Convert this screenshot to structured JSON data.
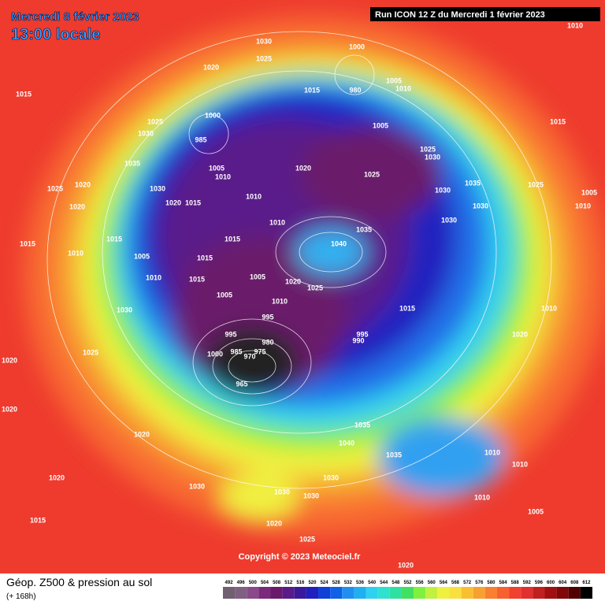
{
  "header": {
    "date": "Mercredi 8 février 2023",
    "time": "13:00 locale",
    "run": "Run ICON 12 Z du Mercredi 1 février 2023"
  },
  "copyright": "Copyright © 2023 Meteociel.fr",
  "legend": {
    "title": "Géop. Z500 & pression au sol",
    "subtitle": "(+ 168h)",
    "ticks": [
      492,
      496,
      500,
      504,
      508,
      512,
      516,
      520,
      524,
      528,
      532,
      536,
      540,
      544,
      548,
      552,
      556,
      560,
      564,
      568,
      572,
      576,
      580,
      584,
      588,
      592,
      596,
      600,
      604,
      608,
      612
    ],
    "colors": [
      "#706070",
      "#806080",
      "#8a4a8a",
      "#7a2a7a",
      "#6a1a6a",
      "#5a1a8a",
      "#3a1a9a",
      "#2020c0",
      "#1040d8",
      "#1060e8",
      "#2090f0",
      "#20b0f0",
      "#30d0f0",
      "#30e0d0",
      "#30e0a0",
      "#40e060",
      "#80f040",
      "#c0f040",
      "#f0f040",
      "#f8e040",
      "#f8c030",
      "#f8a030",
      "#f88030",
      "#f86030",
      "#f04030",
      "#e03030",
      "#c02020",
      "#a01010",
      "#800808",
      "#500000",
      "#000000"
    ]
  },
  "isobar_labels": [
    1030,
    1025,
    1020,
    1015,
    1030,
    1025,
    1000,
    1005,
    1010,
    980,
    1015,
    1000,
    985,
    1005,
    1010,
    1030,
    1020,
    1015,
    1035,
    1025,
    1020,
    1020,
    1015,
    1010,
    1005,
    1015,
    1010,
    1010,
    1015,
    1040,
    1035,
    1020,
    1025,
    1005,
    1025,
    1030,
    1030,
    1035,
    1030,
    1030,
    1015,
    1025,
    1005,
    1010,
    1015,
    1010,
    1015,
    1005,
    1005,
    1020,
    1025,
    1015,
    1030,
    1025,
    1020,
    1020,
    995,
    980,
    975,
    970,
    965,
    985,
    1000,
    995,
    1010,
    995,
    990,
    1020,
    1020,
    1015,
    1030,
    1030,
    1030,
    1030,
    1035,
    1040,
    1035,
    1010,
    1010,
    1010,
    1005,
    1010,
    1020,
    1025,
    1020,
    1020,
    1010
  ]
}
